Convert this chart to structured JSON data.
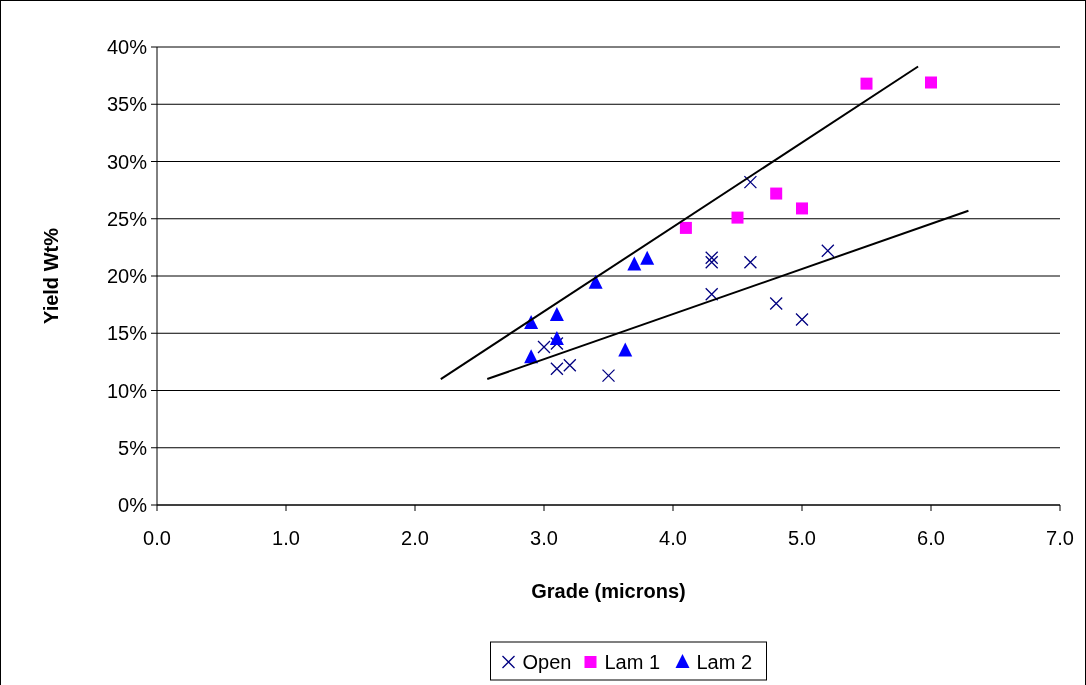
{
  "chart_data": {
    "type": "scatter",
    "xlabel": "Grade (microns)",
    "ylabel": "Yield Wt%",
    "xlim": [
      0,
      7
    ],
    "xticks": [
      {
        "value": 0,
        "label": "0.0"
      },
      {
        "value": 1,
        "label": "1.0"
      },
      {
        "value": 2,
        "label": "2.0"
      },
      {
        "value": 3,
        "label": "3.0"
      },
      {
        "value": 4,
        "label": "4.0"
      },
      {
        "value": 5,
        "label": "5.0"
      },
      {
        "value": 6,
        "label": "6.0"
      },
      {
        "value": 7,
        "label": "7.0"
      }
    ],
    "ylim": [
      0,
      40
    ],
    "yticks": [
      {
        "value": 0,
        "label": "0%"
      },
      {
        "value": 5,
        "label": "5%"
      },
      {
        "value": 10,
        "label": "10%"
      },
      {
        "value": 15,
        "label": "15%"
      },
      {
        "value": 20,
        "label": "20%"
      },
      {
        "value": 25,
        "label": "25%"
      },
      {
        "value": 30,
        "label": "30%"
      },
      {
        "value": 35,
        "label": "35%"
      },
      {
        "value": 40,
        "label": "40%"
      }
    ],
    "grid": "y",
    "legend": "bottom",
    "series": [
      {
        "name": "Open",
        "color": "#000080",
        "marker": "cross",
        "x": [
          3.0,
          3.1,
          3.1,
          3.2,
          3.5,
          4.3,
          4.3,
          4.3,
          4.6,
          4.8,
          5.0,
          5.2,
          4.6
        ],
        "values": [
          13.8,
          14.1,
          11.9,
          12.2,
          11.3,
          21.6,
          21.2,
          18.4,
          21.2,
          17.6,
          16.2,
          22.2,
          28.2
        ]
      },
      {
        "name": "Lam 1",
        "color": "#ff00ff",
        "marker": "square",
        "x": [
          4.1,
          4.5,
          4.8,
          5.0,
          5.5,
          6.0
        ],
        "values": [
          24.2,
          25.1,
          27.2,
          25.9,
          36.8,
          36.9
        ]
      },
      {
        "name": "Lam 2",
        "color": "#0000ff",
        "marker": "triangle",
        "x": [
          2.9,
          3.1,
          3.1,
          2.9,
          3.4,
          3.7,
          3.8,
          3.63
        ],
        "values": [
          15.9,
          16.6,
          14.5,
          12.9,
          19.4,
          21.0,
          21.5,
          13.5
        ]
      },
      {
        "type": "line",
        "color": "#000000",
        "x": [
          2.2,
          5.9
        ],
        "values": [
          11.0,
          38.3
        ]
      },
      {
        "type": "line",
        "color": "#000000",
        "x": [
          2.56,
          6.29
        ],
        "values": [
          11.0,
          25.7
        ]
      }
    ]
  }
}
